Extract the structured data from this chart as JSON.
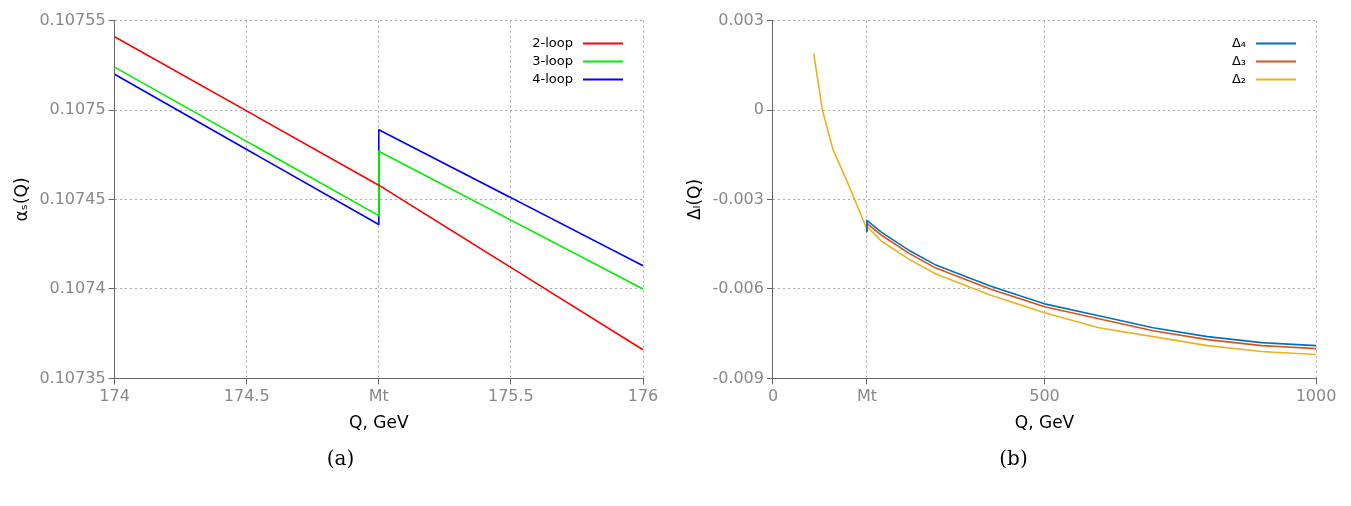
{
  "chart_data": [
    {
      "type": "line",
      "xlabel": "Q, GeV",
      "ylabel": "αₛ(Q)",
      "annotations": [
        "(a)"
      ],
      "xlim": [
        174,
        176
      ],
      "xticks": [
        174,
        174.5,
        {
          "value": 175,
          "label": "Mt"
        },
        175.5,
        176
      ],
      "ylim": [
        0.10735,
        0.10755
      ],
      "yticks": [
        0.10735,
        0.1074,
        0.10745,
        0.1075,
        0.10755
      ],
      "grid": true,
      "legend": "top right",
      "marker": "none",
      "line_style": "solid",
      "series": [
        {
          "name": "2-loop",
          "color": "#ff0000",
          "x": [
            174,
            175,
            176
          ],
          "values": [
            0.107541,
            0.107458,
            0.107366
          ]
        },
        {
          "name": "3-loop",
          "color": "#00ee00",
          "x": [
            174,
            175,
            175,
            176
          ],
          "values": [
            0.107524,
            0.107441,
            0.107477,
            0.1074
          ]
        },
        {
          "name": "4-loop",
          "color": "#0000ff",
          "x": [
            174,
            175,
            175,
            176
          ],
          "values": [
            0.10752,
            0.107436,
            0.107489,
            0.107413
          ]
        }
      ]
    },
    {
      "type": "line",
      "xlabel": "Q, GeV",
      "ylabel": "Δₗ(Q)",
      "annotations": [
        "(b)"
      ],
      "xlim": [
        0,
        1000
      ],
      "xticks": [
        0,
        {
          "value": 173,
          "label": "Mt"
        },
        500,
        1000
      ],
      "ylim": [
        -0.009,
        0.003
      ],
      "yticks": [
        -0.009,
        -0.006,
        -0.003,
        0,
        0.003
      ],
      "grid": true,
      "legend": "top right",
      "marker": "none",
      "line_style": "solid",
      "series": [
        {
          "name": "Δ₄",
          "color": "#0072bd",
          "x": [
            173,
            173,
            200,
            250,
            300,
            400,
            500,
            600,
            700,
            800,
            900,
            1000
          ],
          "values": [
            -0.0041,
            -0.0037,
            -0.0041,
            -0.0047,
            -0.0052,
            -0.0059,
            -0.0065,
            -0.0069,
            -0.0073,
            -0.0076,
            -0.0078,
            -0.0079
          ]
        },
        {
          "name": "Δ₃",
          "color": "#d95319",
          "x": [
            173,
            173,
            200,
            250,
            300,
            400,
            500,
            600,
            700,
            800,
            900,
            1000
          ],
          "values": [
            -0.0041,
            -0.0038,
            -0.0042,
            -0.0048,
            -0.0053,
            -0.006,
            -0.0066,
            -0.007,
            -0.0074,
            -0.0077,
            -0.0079,
            -0.008
          ]
        },
        {
          "name": "Δ₂",
          "color": "#edb120",
          "x": [
            75,
            91,
            110,
            139,
            173,
            173,
            200,
            250,
            300,
            400,
            500,
            600,
            700,
            800,
            900,
            1000
          ],
          "values": [
            0.0019,
            0,
            -0.0013,
            -0.0025,
            -0.004,
            -0.0039,
            -0.0044,
            -0.005,
            -0.0055,
            -0.0062,
            -0.0068,
            -0.0073,
            -0.0076,
            -0.0079,
            -0.0081,
            -0.0082
          ]
        }
      ]
    }
  ]
}
